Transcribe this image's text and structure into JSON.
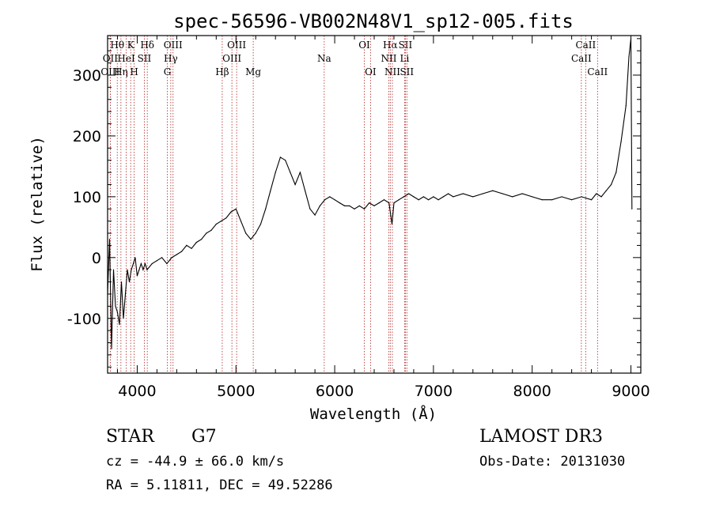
{
  "chart_data": {
    "type": "line",
    "title": "spec-56596-VB002N48V1_sp12-005.fits",
    "xlabel": "Wavelength (Å)",
    "ylabel": "Flux (relative)",
    "xlim": [
      3700,
      9100
    ],
    "ylim": [
      -190,
      365
    ],
    "x_ticks": [
      4000,
      5000,
      6000,
      7000,
      8000,
      9000
    ],
    "y_ticks": [
      -100,
      0,
      100,
      200,
      300
    ],
    "grid": false,
    "series": [
      {
        "points": [
          [
            3700,
            -60
          ],
          [
            3720,
            30
          ],
          [
            3740,
            -150
          ],
          [
            3760,
            -20
          ],
          [
            3780,
            -80
          ],
          [
            3800,
            -90
          ],
          [
            3820,
            -110
          ],
          [
            3840,
            -40
          ],
          [
            3860,
            -100
          ],
          [
            3880,
            -60
          ],
          [
            3900,
            -20
          ],
          [
            3920,
            -40
          ],
          [
            3940,
            -20
          ],
          [
            3960,
            -10
          ],
          [
            3980,
            0
          ],
          [
            4000,
            -30
          ],
          [
            4020,
            -20
          ],
          [
            4040,
            -10
          ],
          [
            4060,
            -20
          ],
          [
            4080,
            -10
          ],
          [
            4100,
            -20
          ],
          [
            4150,
            -10
          ],
          [
            4200,
            -5
          ],
          [
            4250,
            0
          ],
          [
            4300,
            -10
          ],
          [
            4350,
            0
          ],
          [
            4400,
            5
          ],
          [
            4450,
            10
          ],
          [
            4500,
            20
          ],
          [
            4550,
            15
          ],
          [
            4600,
            25
          ],
          [
            4650,
            30
          ],
          [
            4700,
            40
          ],
          [
            4750,
            45
          ],
          [
            4800,
            55
          ],
          [
            4850,
            60
          ],
          [
            4900,
            65
          ],
          [
            4950,
            75
          ],
          [
            5000,
            80
          ],
          [
            5050,
            60
          ],
          [
            5100,
            40
          ],
          [
            5150,
            30
          ],
          [
            5200,
            40
          ],
          [
            5250,
            55
          ],
          [
            5300,
            80
          ],
          [
            5350,
            110
          ],
          [
            5400,
            140
          ],
          [
            5450,
            165
          ],
          [
            5500,
            160
          ],
          [
            5550,
            140
          ],
          [
            5600,
            120
          ],
          [
            5650,
            140
          ],
          [
            5700,
            110
          ],
          [
            5750,
            80
          ],
          [
            5800,
            70
          ],
          [
            5850,
            85
          ],
          [
            5900,
            95
          ],
          [
            5950,
            100
          ],
          [
            6000,
            95
          ],
          [
            6050,
            90
          ],
          [
            6100,
            85
          ],
          [
            6150,
            85
          ],
          [
            6200,
            80
          ],
          [
            6250,
            85
          ],
          [
            6300,
            80
          ],
          [
            6350,
            90
          ],
          [
            6400,
            85
          ],
          [
            6450,
            90
          ],
          [
            6500,
            95
          ],
          [
            6550,
            90
          ],
          [
            6580,
            55
          ],
          [
            6600,
            90
          ],
          [
            6650,
            95
          ],
          [
            6700,
            100
          ],
          [
            6750,
            105
          ],
          [
            6800,
            100
          ],
          [
            6850,
            95
          ],
          [
            6900,
            100
          ],
          [
            6950,
            95
          ],
          [
            7000,
            100
          ],
          [
            7050,
            95
          ],
          [
            7100,
            100
          ],
          [
            7150,
            105
          ],
          [
            7200,
            100
          ],
          [
            7300,
            105
          ],
          [
            7400,
            100
          ],
          [
            7500,
            105
          ],
          [
            7600,
            110
          ],
          [
            7700,
            105
          ],
          [
            7800,
            100
          ],
          [
            7900,
            105
          ],
          [
            8000,
            100
          ],
          [
            8100,
            95
          ],
          [
            8200,
            95
          ],
          [
            8300,
            100
          ],
          [
            8400,
            95
          ],
          [
            8500,
            100
          ],
          [
            8600,
            95
          ],
          [
            8650,
            105
          ],
          [
            8700,
            100
          ],
          [
            8750,
            110
          ],
          [
            8800,
            120
          ],
          [
            8850,
            140
          ],
          [
            8900,
            190
          ],
          [
            8950,
            250
          ],
          [
            8980,
            330
          ],
          [
            9000,
            360
          ],
          [
            9010,
            80
          ]
        ]
      }
    ],
    "spectral_lines": [
      {
        "label": "Hθ",
        "wavelength": 3798,
        "row": 1
      },
      {
        "label": "OII",
        "wavelength": 3727,
        "row": 2
      },
      {
        "label": "OIII",
        "wavelength": 3727,
        "row": 3
      },
      {
        "label": "Hη",
        "wavelength": 3835,
        "row": 3
      },
      {
        "label": "K",
        "wavelength": 3934,
        "row": 1
      },
      {
        "label": "HeI",
        "wavelength": 3889,
        "row": 2
      },
      {
        "label": "H",
        "wavelength": 3969,
        "row": 3
      },
      {
        "label": "Hδ",
        "wavelength": 4102,
        "row": 1
      },
      {
        "label": "SII",
        "wavelength": 4072,
        "row": 2
      },
      {
        "label": "OIII",
        "wavelength": 4363,
        "row": 1
      },
      {
        "label": "Hγ",
        "wavelength": 4340,
        "row": 2
      },
      {
        "label": "G",
        "wavelength": 4305,
        "row": 3
      },
      {
        "label": "OIII",
        "wavelength": 5007,
        "row": 1
      },
      {
        "label": "OIII",
        "wavelength": 4959,
        "row": 2
      },
      {
        "label": "Hβ",
        "wavelength": 4861,
        "row": 3
      },
      {
        "label": "Mg",
        "wavelength": 5175,
        "row": 3
      },
      {
        "label": "Na",
        "wavelength": 5894,
        "row": 2
      },
      {
        "label": "OI",
        "wavelength": 6300,
        "row": 1
      },
      {
        "label": "OI",
        "wavelength": 6363,
        "row": 3
      },
      {
        "label": "Hα",
        "wavelength": 6563,
        "row": 1
      },
      {
        "label": "SII",
        "wavelength": 6716,
        "row": 1
      },
      {
        "label": "NII",
        "wavelength": 6548,
        "row": 2
      },
      {
        "label": "Li",
        "wavelength": 6708,
        "row": 2
      },
      {
        "label": "NII",
        "wavelength": 6584,
        "row": 3
      },
      {
        "label": "SII",
        "wavelength": 6731,
        "row": 3
      },
      {
        "label": "CaII",
        "wavelength": 8542,
        "row": 1
      },
      {
        "label": "CaII",
        "wavelength": 8498,
        "row": 2
      },
      {
        "label": "CaII",
        "wavelength": 8662,
        "row": 3
      }
    ]
  },
  "info": {
    "object_type": "STAR",
    "subclass": "G7",
    "survey": "LAMOST DR3",
    "redshift": "cz = -44.9 ± 66.0 km/s",
    "obs_date": "Obs-Date: 20131030",
    "coords": "RA =   5.11811, DEC =  49.52286"
  },
  "colors": {
    "spectrum": "#000000",
    "line_marker": "#b22222",
    "axes": "#000000"
  }
}
